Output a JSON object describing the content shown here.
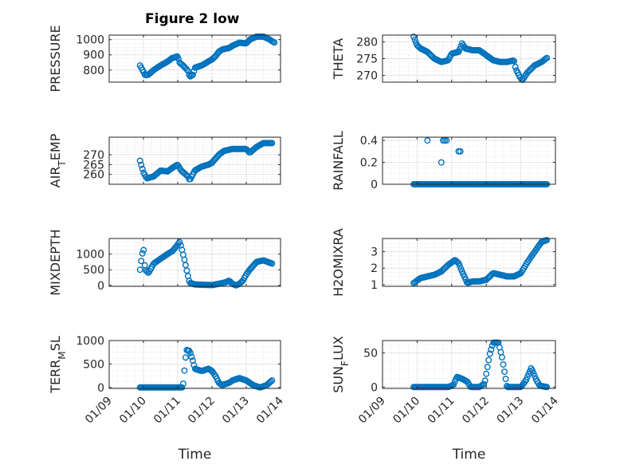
{
  "figure": {
    "title": "Figure 2 low",
    "marker_color": "#0072BD",
    "time_ticks": [
      "01/09",
      "01/10",
      "01/11",
      "01/12",
      "01/13",
      "01/14"
    ],
    "xlabel": "Time"
  },
  "chart_data": [
    {
      "type": "scatter",
      "ylabel": "PRESSURE",
      "title": "Figure 2 low",
      "xlim": [
        0,
        5
      ],
      "ylim": [
        720,
        1030
      ],
      "yticks": [
        800,
        900,
        1000
      ],
      "yticklabels": [
        "800",
        "900",
        "1000"
      ],
      "anchors": [
        [
          0.9,
          830
        ],
        [
          1.0,
          790
        ],
        [
          1.05,
          765
        ],
        [
          1.15,
          770
        ],
        [
          1.3,
          800
        ],
        [
          1.5,
          830
        ],
        [
          1.7,
          855
        ],
        [
          1.85,
          880
        ],
        [
          2.0,
          890
        ],
        [
          2.05,
          850
        ],
        [
          2.2,
          820
        ],
        [
          2.3,
          795
        ],
        [
          2.35,
          755
        ],
        [
          2.45,
          770
        ],
        [
          2.5,
          815
        ],
        [
          2.7,
          830
        ],
        [
          2.85,
          850
        ],
        [
          3.0,
          870
        ],
        [
          3.1,
          890
        ],
        [
          3.2,
          920
        ],
        [
          3.3,
          935
        ],
        [
          3.5,
          945
        ],
        [
          3.6,
          960
        ],
        [
          3.8,
          980
        ],
        [
          4.0,
          975
        ],
        [
          4.1,
          1000
        ],
        [
          4.3,
          1020
        ],
        [
          4.5,
          1020
        ],
        [
          4.65,
          1005
        ],
        [
          4.75,
          990
        ],
        [
          4.85,
          978
        ]
      ]
    },
    {
      "type": "scatter",
      "ylabel": "THETA",
      "title": "",
      "xlim": [
        0,
        5
      ],
      "ylim": [
        268,
        282
      ],
      "yticks": [
        270,
        275,
        280
      ],
      "yticklabels": [
        "270",
        "275",
        "280"
      ],
      "anchors": [
        [
          0.9,
          281.5
        ],
        [
          1.0,
          279
        ],
        [
          1.1,
          278
        ],
        [
          1.3,
          277
        ],
        [
          1.5,
          275
        ],
        [
          1.7,
          274
        ],
        [
          1.9,
          274.5
        ],
        [
          2.0,
          276.5
        ],
        [
          2.2,
          277
        ],
        [
          2.3,
          279.5
        ],
        [
          2.4,
          278
        ],
        [
          2.6,
          277.5
        ],
        [
          2.8,
          277.5
        ],
        [
          3.0,
          276
        ],
        [
          3.2,
          274.5
        ],
        [
          3.4,
          274
        ],
        [
          3.6,
          274
        ],
        [
          3.8,
          274.5
        ],
        [
          3.85,
          272
        ],
        [
          4.0,
          269
        ],
        [
          4.05,
          268.7
        ],
        [
          4.2,
          271
        ],
        [
          4.4,
          273
        ],
        [
          4.6,
          274
        ],
        [
          4.75,
          275.2
        ]
      ]
    },
    {
      "type": "scatter",
      "ylabel": "AIR_TEMP",
      "title": "",
      "xlim": [
        0,
        5
      ],
      "ylim": [
        255,
        279
      ],
      "yticks": [
        260,
        265,
        270
      ],
      "yticklabels": [
        "260",
        "265",
        "270"
      ],
      "anchors": [
        [
          0.9,
          267
        ],
        [
          0.95,
          264
        ],
        [
          1.0,
          261
        ],
        [
          1.1,
          258
        ],
        [
          1.3,
          259
        ],
        [
          1.5,
          262
        ],
        [
          1.7,
          261.5
        ],
        [
          1.9,
          264
        ],
        [
          2.0,
          265
        ],
        [
          2.1,
          262
        ],
        [
          2.3,
          259
        ],
        [
          2.35,
          257
        ],
        [
          2.5,
          262
        ],
        [
          2.7,
          264
        ],
        [
          2.9,
          265
        ],
        [
          3.0,
          266
        ],
        [
          3.1,
          268
        ],
        [
          3.2,
          270
        ],
        [
          3.35,
          272
        ],
        [
          3.6,
          273
        ],
        [
          3.8,
          273
        ],
        [
          4.0,
          273
        ],
        [
          4.1,
          271
        ],
        [
          4.3,
          274
        ],
        [
          4.5,
          276
        ],
        [
          4.75,
          276
        ]
      ]
    },
    {
      "type": "scatter",
      "ylabel": "RAINFALL",
      "title": "",
      "xlim": [
        0,
        5
      ],
      "ylim": [
        0,
        0.43
      ],
      "yticks": [
        0,
        0.2,
        0.4
      ],
      "yticklabels": [
        "0",
        "0.2",
        "0.4"
      ],
      "anchors": [
        [
          0.9,
          0
        ],
        [
          4.75,
          0
        ]
      ],
      "extra_points": [
        [
          1.3,
          0.4
        ],
        [
          1.7,
          0.2
        ],
        [
          1.75,
          0.4
        ],
        [
          1.8,
          0.4
        ],
        [
          1.85,
          0.4
        ],
        [
          2.2,
          0.3
        ],
        [
          2.25,
          0.3
        ]
      ]
    },
    {
      "type": "scatter",
      "ylabel": "MIXDEPTH",
      "title": "",
      "xlim": [
        0,
        5
      ],
      "ylim": [
        -30,
        1500
      ],
      "yticks": [
        0,
        500,
        1000
      ],
      "yticklabels": [
        "0",
        "500",
        "1000"
      ],
      "anchors": [
        [
          0.9,
          500
        ],
        [
          0.95,
          900
        ],
        [
          1.0,
          1200
        ],
        [
          1.05,
          500
        ],
        [
          1.15,
          400
        ],
        [
          1.3,
          700
        ],
        [
          1.5,
          850
        ],
        [
          1.7,
          1000
        ],
        [
          1.85,
          1100
        ],
        [
          2.0,
          1300
        ],
        [
          2.05,
          1400
        ],
        [
          2.1,
          1250
        ],
        [
          2.2,
          800
        ],
        [
          2.3,
          300
        ],
        [
          2.35,
          80
        ],
        [
          2.5,
          30
        ],
        [
          2.7,
          20
        ],
        [
          3.0,
          10
        ],
        [
          3.2,
          50
        ],
        [
          3.4,
          100
        ],
        [
          3.5,
          150
        ],
        [
          3.6,
          50
        ],
        [
          3.7,
          0
        ],
        [
          3.8,
          50
        ],
        [
          3.9,
          150
        ],
        [
          4.0,
          350
        ],
        [
          4.1,
          500
        ],
        [
          4.3,
          750
        ],
        [
          4.5,
          800
        ],
        [
          4.75,
          700
        ]
      ]
    },
    {
      "type": "scatter",
      "ylabel": "H2OMIXRA",
      "title": "",
      "xlim": [
        0,
        5
      ],
      "ylim": [
        0.9,
        3.8
      ],
      "yticks": [
        1,
        2,
        3
      ],
      "yticklabels": [
        "1",
        "2",
        "3"
      ],
      "anchors": [
        [
          0.9,
          1.1
        ],
        [
          1.1,
          1.4
        ],
        [
          1.3,
          1.5
        ],
        [
          1.5,
          1.6
        ],
        [
          1.7,
          1.8
        ],
        [
          1.9,
          2.2
        ],
        [
          2.1,
          2.5
        ],
        [
          2.2,
          2.3
        ],
        [
          2.3,
          1.8
        ],
        [
          2.45,
          1.1
        ],
        [
          2.6,
          1.2
        ],
        [
          2.8,
          1.2
        ],
        [
          3.0,
          1.3
        ],
        [
          3.2,
          1.7
        ],
        [
          3.4,
          1.6
        ],
        [
          3.6,
          1.5
        ],
        [
          3.8,
          1.5
        ],
        [
          4.0,
          1.7
        ],
        [
          4.2,
          2.4
        ],
        [
          4.4,
          3.0
        ],
        [
          4.6,
          3.6
        ],
        [
          4.75,
          3.7
        ]
      ]
    },
    {
      "type": "scatter",
      "ylabel": "TERR_MSL",
      "title": "",
      "xlim": [
        0,
        5
      ],
      "ylim": [
        -20,
        1000
      ],
      "yticks": [
        0,
        500,
        1000
      ],
      "yticklabels": [
        "0",
        "500",
        "1000"
      ],
      "anchors": [
        [
          0.9,
          0
        ],
        [
          2.15,
          0
        ],
        [
          2.2,
          400
        ],
        [
          2.25,
          800
        ],
        [
          2.35,
          780
        ],
        [
          2.45,
          550
        ],
        [
          2.5,
          400
        ],
        [
          2.7,
          350
        ],
        [
          2.9,
          400
        ],
        [
          3.0,
          350
        ],
        [
          3.1,
          250
        ],
        [
          3.2,
          100
        ],
        [
          3.3,
          50
        ],
        [
          3.5,
          100
        ],
        [
          3.6,
          150
        ],
        [
          3.8,
          200
        ],
        [
          4.0,
          150
        ],
        [
          4.2,
          50
        ],
        [
          4.4,
          0
        ],
        [
          4.6,
          50
        ],
        [
          4.75,
          150
        ]
      ]
    },
    {
      "type": "scatter",
      "ylabel": "SUN_FLUX",
      "title": "",
      "xlim": [
        0,
        5
      ],
      "ylim": [
        -2,
        68
      ],
      "yticks": [
        0,
        50
      ],
      "yticklabels": [
        "0",
        "50"
      ],
      "anchors": [
        [
          0.9,
          0
        ],
        [
          1.9,
          0
        ],
        [
          2.05,
          3
        ],
        [
          2.15,
          15
        ],
        [
          2.3,
          12
        ],
        [
          2.45,
          8
        ],
        [
          2.55,
          0
        ],
        [
          2.8,
          0
        ],
        [
          2.95,
          5
        ],
        [
          3.1,
          48
        ],
        [
          3.2,
          65
        ],
        [
          3.35,
          65
        ],
        [
          3.45,
          45
        ],
        [
          3.55,
          15
        ],
        [
          3.6,
          0
        ],
        [
          4.0,
          0
        ],
        [
          4.15,
          10
        ],
        [
          4.3,
          28
        ],
        [
          4.45,
          10
        ],
        [
          4.55,
          2
        ],
        [
          4.75,
          0
        ]
      ]
    }
  ]
}
